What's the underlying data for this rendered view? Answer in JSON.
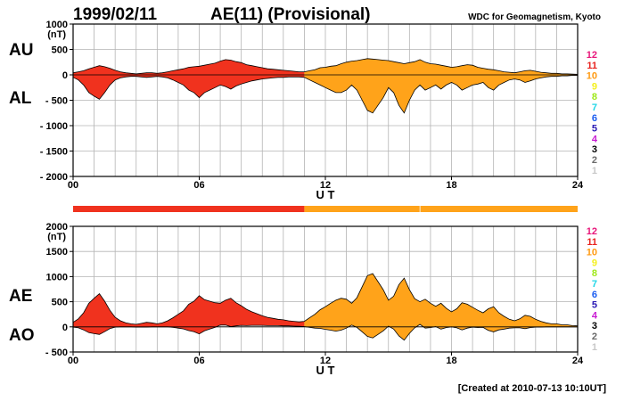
{
  "header": {
    "date": "1999/02/11",
    "title": "AE(11) (Provisional)",
    "institution": "WDC for Geomagnetism, Kyoto"
  },
  "footer": {
    "created": "[Created at 2010-07-13 10:10UT]"
  },
  "colors": {
    "red_segment": "#f0321e",
    "orange_segment": "#ffa31a",
    "axis": "#000000",
    "grid": "#b4b4b4"
  },
  "station_legend": [
    {
      "label": "12",
      "color": "#e8167a"
    },
    {
      "label": "11",
      "color": "#e8221e"
    },
    {
      "label": "10",
      "color": "#ff9a12"
    },
    {
      "label": "9",
      "color": "#f4f01c"
    },
    {
      "label": "8",
      "color": "#9ee81a"
    },
    {
      "label": "7",
      "color": "#22d6e6"
    },
    {
      "label": "6",
      "color": "#1a5cf0"
    },
    {
      "label": "5",
      "color": "#2a1ab4"
    },
    {
      "label": "4",
      "color": "#c81ad2"
    },
    {
      "label": "3",
      "color": "#000000"
    },
    {
      "label": "2",
      "color": "#6a6a6a"
    },
    {
      "label": "1",
      "color": "#c8c8c8"
    }
  ],
  "station_bar_segments": [
    {
      "start": 0,
      "end": 11,
      "station": "11",
      "color": "#f0321e"
    },
    {
      "start": 11,
      "end": 24,
      "station": "10",
      "color": "#ffa31a"
    }
  ],
  "chart_data": [
    {
      "type": "area",
      "panel": "AU / AL",
      "labels": [
        "AU",
        "AL"
      ],
      "units": "(nT)",
      "xlabel": "U T",
      "xlim": [
        0,
        24
      ],
      "xticks": [
        0,
        6,
        12,
        18,
        24
      ],
      "xtick_labels": [
        "00",
        "06",
        "12",
        "18",
        "24"
      ],
      "ylim": [
        -2000,
        1000
      ],
      "yticks": [
        1000,
        500,
        0,
        -500,
        -1000,
        -1500,
        -2000
      ],
      "ytick_labels": [
        "1000",
        "500",
        "0",
        "- 500",
        "- 1000",
        "- 1500",
        "- 2000"
      ],
      "grid": true,
      "x": [
        0,
        0.25,
        0.5,
        0.75,
        1.0,
        1.25,
        1.5,
        1.75,
        2.0,
        2.25,
        2.5,
        2.75,
        3.0,
        3.25,
        3.5,
        3.75,
        4.0,
        4.25,
        4.5,
        4.75,
        5.0,
        5.25,
        5.5,
        5.75,
        6.0,
        6.25,
        6.5,
        6.75,
        7.0,
        7.25,
        7.5,
        7.75,
        8.0,
        8.25,
        8.5,
        8.75,
        9.0,
        9.25,
        9.5,
        9.75,
        10.0,
        10.25,
        10.5,
        10.75,
        11.0,
        11.25,
        11.5,
        11.75,
        12.0,
        12.25,
        12.5,
        12.75,
        13.0,
        13.25,
        13.5,
        13.75,
        14.0,
        14.25,
        14.5,
        14.75,
        15.0,
        15.25,
        15.5,
        15.75,
        16.0,
        16.25,
        16.5,
        16.75,
        17.0,
        17.25,
        17.5,
        17.75,
        18.0,
        18.25,
        18.5,
        18.75,
        19.0,
        19.25,
        19.5,
        19.75,
        20.0,
        20.25,
        20.5,
        20.75,
        21.0,
        21.25,
        21.5,
        21.75,
        22.0,
        22.25,
        22.5,
        22.75,
        23.0,
        23.25,
        23.5,
        23.75,
        24.0
      ],
      "series": [
        {
          "name": "AU",
          "values": [
            40,
            60,
            80,
            120,
            150,
            180,
            160,
            130,
            90,
            60,
            40,
            30,
            20,
            30,
            40,
            40,
            30,
            40,
            60,
            80,
            100,
            120,
            150,
            160,
            170,
            190,
            210,
            230,
            270,
            300,
            290,
            260,
            240,
            200,
            180,
            160,
            140,
            120,
            110,
            100,
            90,
            80,
            70,
            60,
            60,
            80,
            100,
            140,
            150,
            170,
            180,
            220,
            250,
            270,
            280,
            300,
            320,
            310,
            300,
            290,
            280,
            260,
            240,
            220,
            240,
            260,
            300,
            250,
            220,
            210,
            190,
            170,
            150,
            160,
            180,
            200,
            190,
            150,
            130,
            110,
            100,
            80,
            60,
            50,
            40,
            60,
            80,
            90,
            70,
            50,
            40,
            30,
            30,
            20,
            20,
            15,
            10
          ]
        },
        {
          "name": "AL",
          "values": [
            -50,
            -100,
            -200,
            -350,
            -420,
            -480,
            -350,
            -200,
            -100,
            -60,
            -40,
            -30,
            -30,
            -40,
            -50,
            -40,
            -30,
            -40,
            -60,
            -100,
            -150,
            -200,
            -300,
            -350,
            -450,
            -350,
            -300,
            -250,
            -200,
            -230,
            -280,
            -220,
            -180,
            -150,
            -120,
            -100,
            -80,
            -70,
            -60,
            -50,
            -50,
            -40,
            -40,
            -40,
            -50,
            -100,
            -150,
            -200,
            -250,
            -300,
            -350,
            -350,
            -300,
            -200,
            -300,
            -500,
            -700,
            -750,
            -600,
            -450,
            -250,
            -350,
            -600,
            -750,
            -500,
            -300,
            -200,
            -300,
            -250,
            -200,
            -280,
            -200,
            -150,
            -200,
            -300,
            -250,
            -200,
            -180,
            -150,
            -250,
            -300,
            -200,
            -150,
            -100,
            -80,
            -100,
            -150,
            -120,
            -80,
            -60,
            -40,
            -30,
            -30,
            -20,
            -20,
            -10,
            -10
          ]
        }
      ]
    },
    {
      "type": "area",
      "panel": "AE / AO",
      "labels": [
        "AE",
        "AO"
      ],
      "units": "(nT)",
      "xlabel": "U T",
      "xlim": [
        0,
        24
      ],
      "xticks": [
        0,
        6,
        12,
        18,
        24
      ],
      "xtick_labels": [
        "00",
        "06",
        "12",
        "18",
        "24"
      ],
      "ylim": [
        -500,
        2000
      ],
      "yticks": [
        2000,
        1500,
        1000,
        500,
        0,
        -500
      ],
      "ytick_labels": [
        "2000",
        "1500",
        "1000",
        "500",
        "0",
        "- 500"
      ],
      "grid": true,
      "x": [
        0,
        0.25,
        0.5,
        0.75,
        1.0,
        1.25,
        1.5,
        1.75,
        2.0,
        2.25,
        2.5,
        2.75,
        3.0,
        3.25,
        3.5,
        3.75,
        4.0,
        4.25,
        4.5,
        4.75,
        5.0,
        5.25,
        5.5,
        5.75,
        6.0,
        6.25,
        6.5,
        6.75,
        7.0,
        7.25,
        7.5,
        7.75,
        8.0,
        8.25,
        8.5,
        8.75,
        9.0,
        9.25,
        9.5,
        9.75,
        10.0,
        10.25,
        10.5,
        10.75,
        11.0,
        11.25,
        11.5,
        11.75,
        12.0,
        12.25,
        12.5,
        12.75,
        13.0,
        13.25,
        13.5,
        13.75,
        14.0,
        14.25,
        14.5,
        14.75,
        15.0,
        15.25,
        15.5,
        15.75,
        16.0,
        16.25,
        16.5,
        16.75,
        17.0,
        17.25,
        17.5,
        17.75,
        18.0,
        18.25,
        18.5,
        18.75,
        19.0,
        19.25,
        19.5,
        19.75,
        20.0,
        20.25,
        20.5,
        20.75,
        21.0,
        21.25,
        21.5,
        21.75,
        22.0,
        22.25,
        22.5,
        22.75,
        23.0,
        23.25,
        23.5,
        23.75,
        24.0
      ],
      "series": [
        {
          "name": "AE",
          "values": [
            90,
            160,
            280,
            470,
            570,
            660,
            510,
            330,
            190,
            120,
            80,
            60,
            50,
            70,
            90,
            80,
            60,
            80,
            120,
            180,
            250,
            320,
            450,
            510,
            620,
            540,
            510,
            480,
            470,
            530,
            570,
            480,
            420,
            350,
            300,
            260,
            220,
            190,
            170,
            150,
            140,
            120,
            110,
            100,
            110,
            180,
            250,
            340,
            400,
            470,
            530,
            570,
            550,
            470,
            580,
            800,
            1020,
            1060,
            900,
            740,
            530,
            610,
            840,
            970,
            740,
            560,
            500,
            550,
            470,
            410,
            470,
            370,
            300,
            360,
            480,
            450,
            390,
            330,
            280,
            360,
            400,
            280,
            210,
            150,
            120,
            160,
            230,
            210,
            150,
            110,
            80,
            60,
            60,
            40,
            40,
            25,
            20
          ]
        },
        {
          "name": "AO",
          "values": [
            -5,
            -20,
            -60,
            -115,
            -135,
            -150,
            -95,
            -35,
            -5,
            0,
            0,
            0,
            -5,
            -5,
            -5,
            0,
            0,
            0,
            0,
            -10,
            -25,
            -40,
            -75,
            -95,
            -140,
            -80,
            -45,
            -10,
            35,
            35,
            5,
            20,
            30,
            25,
            30,
            30,
            30,
            25,
            25,
            25,
            20,
            20,
            15,
            10,
            5,
            -10,
            -25,
            -30,
            -50,
            -65,
            -85,
            -65,
            -25,
            35,
            -10,
            -100,
            -190,
            -220,
            -150,
            -80,
            15,
            -45,
            -180,
            -265,
            -130,
            -20,
            50,
            -25,
            -15,
            5,
            -45,
            -15,
            0,
            -20,
            -60,
            -25,
            -5,
            -15,
            -10,
            -70,
            -100,
            -60,
            -45,
            -25,
            -20,
            -20,
            -35,
            -15,
            -5,
            -5,
            0,
            0,
            0,
            0,
            0,
            0,
            0
          ]
        }
      ]
    }
  ]
}
